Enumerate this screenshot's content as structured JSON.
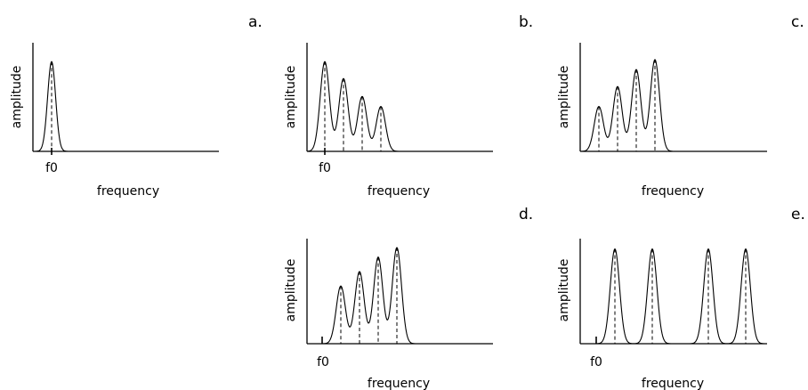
{
  "labels": {
    "amplitude": "amplitude",
    "frequency": "frequency",
    "f0": "f0"
  },
  "panel_letters": [
    "a.",
    "b.",
    "c.",
    "d.",
    "e."
  ],
  "panels": [
    {
      "id": "a",
      "show_f0": true,
      "peaks": [
        0.9
      ]
    },
    {
      "id": "b",
      "show_f0": true,
      "peaks": [
        0.9,
        0.73,
        0.55,
        0.45
      ]
    },
    {
      "id": "c",
      "show_f0": false,
      "peaks": [
        0.45,
        0.65,
        0.82,
        0.92
      ]
    },
    {
      "id": "d",
      "show_f0": true,
      "peaks": [
        0.6,
        0.75,
        0.9,
        1.0
      ]
    },
    {
      "id": "e",
      "show_f0": true,
      "peaks": [
        0.95,
        0.95,
        0.95,
        0.95
      ]
    }
  ]
}
